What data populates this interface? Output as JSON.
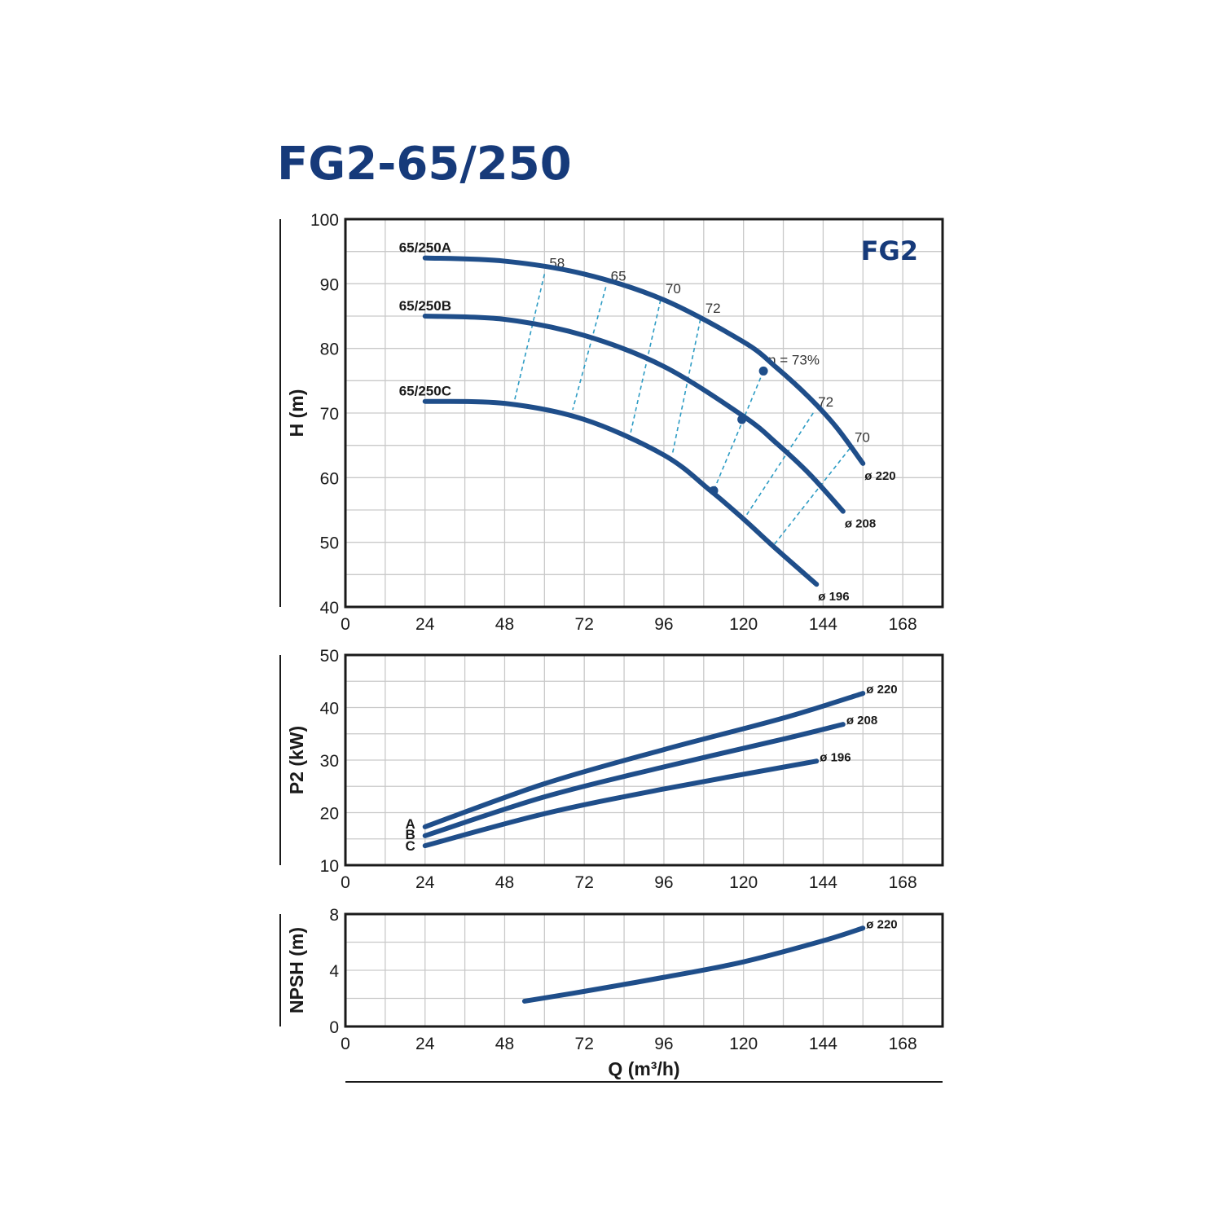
{
  "page": {
    "title": "FG2-65/250",
    "brand_label": "FG2"
  },
  "colors": {
    "curve": "#1f4e8a",
    "iso_efficiency": "#2e9cc4",
    "title": "#163a7a"
  },
  "chart_data": [
    {
      "id": "head",
      "type": "line",
      "ylabel": "H (m)",
      "xlabel": "",
      "xlim": [
        0,
        180
      ],
      "ylim": [
        40,
        100
      ],
      "x_ticks": [
        0,
        24,
        48,
        72,
        96,
        120,
        144,
        168
      ],
      "y_ticks": [
        40,
        50,
        60,
        70,
        80,
        90,
        100
      ],
      "grid": true,
      "series": [
        {
          "name": "65/250A",
          "diameter": "ø 220",
          "x": [
            24,
            48,
            72,
            96,
            120,
            130,
            140,
            148,
            156
          ],
          "y": [
            94,
            93.5,
            91.5,
            87.5,
            81,
            77,
            72.3,
            67.8,
            62.2
          ]
        },
        {
          "name": "65/250B",
          "diameter": "ø 208",
          "x": [
            24,
            48,
            72,
            96,
            120,
            130,
            140,
            150
          ],
          "y": [
            85,
            84.5,
            82,
            77.2,
            69.5,
            65.3,
            60.5,
            54.8
          ]
        },
        {
          "name": "65/250C",
          "diameter": "ø 196",
          "x": [
            24,
            48,
            72,
            96,
            110,
            120,
            130,
            142
          ],
          "y": [
            71.8,
            71.5,
            69,
            63.5,
            58,
            53.6,
            48.9,
            43.5
          ]
        }
      ],
      "efficiency_lines": [
        {
          "label": "58",
          "points": [
            [
              60,
              91.5
            ],
            [
              51,
              72
            ]
          ]
        },
        {
          "label": "65",
          "points": [
            [
              78.5,
              89.5
            ],
            [
              68.5,
              70.5
            ]
          ]
        },
        {
          "label": "70",
          "points": [
            [
              95,
              87.5
            ],
            [
              86,
              67
            ]
          ]
        },
        {
          "label": "72",
          "points": [
            [
              107,
              84.5
            ],
            [
              98.5,
              63.5
            ]
          ]
        },
        {
          "label": "η = 73%",
          "points": [
            [
              126,
              76.5
            ],
            [
              111,
              58
            ]
          ]
        },
        {
          "label": "72",
          "points": [
            [
              141,
              70
            ],
            [
              120,
              53.5
            ]
          ]
        },
        {
          "label": "70",
          "points": [
            [
              152,
              64.5
            ],
            [
              129,
              49.5
            ]
          ]
        }
      ],
      "dots": [
        [
          126,
          76.5
        ],
        [
          119.5,
          69
        ],
        [
          111,
          58
        ]
      ]
    },
    {
      "id": "power",
      "type": "line",
      "ylabel": "P2 (kW)",
      "xlabel": "",
      "xlim": [
        0,
        180
      ],
      "ylim": [
        10,
        50
      ],
      "x_ticks": [
        0,
        24,
        48,
        72,
        96,
        120,
        144,
        168
      ],
      "y_ticks": [
        10,
        20,
        30,
        40,
        50
      ],
      "grid": true,
      "series": [
        {
          "name": "A",
          "diameter": "ø 220",
          "x": [
            24,
            60,
            96,
            132,
            156
          ],
          "y": [
            17.3,
            25.5,
            32,
            38,
            42.7
          ]
        },
        {
          "name": "B",
          "diameter": "ø 208",
          "x": [
            24,
            60,
            96,
            132,
            150
          ],
          "y": [
            15.6,
            23,
            28.7,
            34,
            36.8
          ]
        },
        {
          "name": "C",
          "diameter": "ø 196",
          "x": [
            24,
            60,
            96,
            142
          ],
          "y": [
            13.7,
            19.8,
            24.5,
            29.8
          ]
        }
      ]
    },
    {
      "id": "npsh",
      "type": "line",
      "ylabel": "NPSH (m)",
      "xlabel": "Q (m³/h)",
      "xlim": [
        0,
        180
      ],
      "ylim": [
        0,
        8
      ],
      "x_ticks": [
        0,
        24,
        48,
        72,
        96,
        120,
        144,
        168
      ],
      "y_ticks": [
        0,
        4,
        8
      ],
      "grid": true,
      "series": [
        {
          "name": "",
          "diameter": "ø 220",
          "x": [
            54,
            72,
            96,
            120,
            144,
            156
          ],
          "y": [
            1.8,
            2.5,
            3.5,
            4.6,
            6.1,
            7.0
          ]
        }
      ]
    }
  ]
}
